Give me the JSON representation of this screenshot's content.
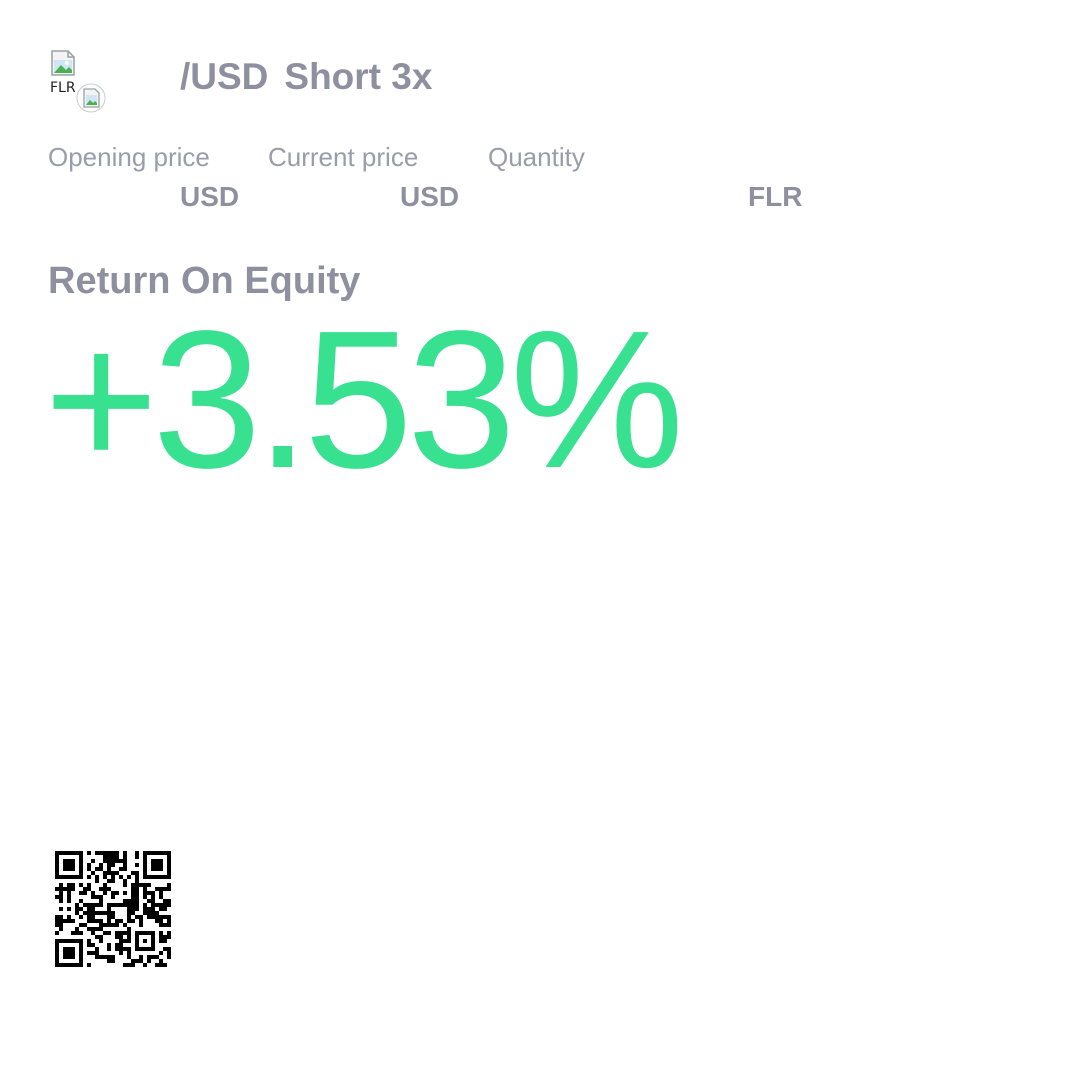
{
  "position": {
    "pair_title": "/USD",
    "direction_leverage": "Short 3x",
    "token_icon_alt": "FLR",
    "icons": [
      "broken-image-icon",
      "broken-image-icon"
    ]
  },
  "stats": {
    "opening_price": {
      "label": "Opening price",
      "unit": "USD"
    },
    "current_price": {
      "label": "Current price",
      "unit": "USD"
    },
    "quantity": {
      "label": "Quantity",
      "unit": "FLR"
    }
  },
  "roe": {
    "label": "Return On Equity",
    "value": "+3.53%"
  },
  "colors": {
    "positive": "#38e18f",
    "text_muted": "#8e90a0",
    "qr": "#000000"
  },
  "qr_icon": "qr-code-icon"
}
